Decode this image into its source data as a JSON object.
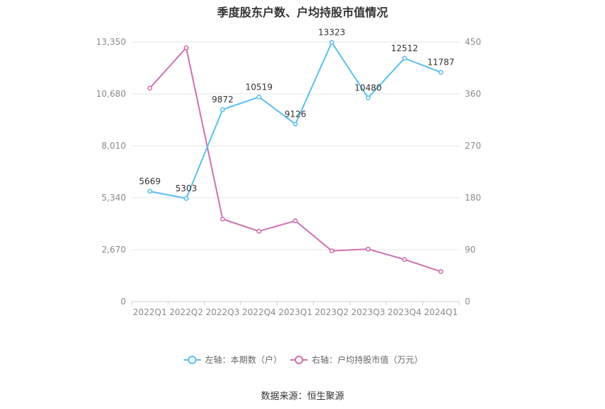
{
  "chart_data": {
    "type": "line",
    "title": "季度股东户数、户均持股市值情况",
    "source": "数据来源：恒生聚源",
    "categories": [
      "2022Q1",
      "2022Q2",
      "2022Q3",
      "2022Q4",
      "2023Q1",
      "2023Q2",
      "2023Q3",
      "2023Q4",
      "2024Q1"
    ],
    "left_axis": {
      "ticks": [
        "0",
        "2,670",
        "5,340",
        "8,010",
        "10,680",
        "13,350"
      ],
      "ylim": [
        0,
        13350
      ]
    },
    "right_axis": {
      "ticks": [
        "0",
        "90",
        "180",
        "270",
        "360",
        "450"
      ],
      "ylim": [
        0,
        450
      ]
    },
    "series": [
      {
        "name": "左轴：本期数（户）",
        "axis": "left",
        "color": "#5bc0f0",
        "values": [
          5669,
          5303,
          9872,
          10519,
          9126,
          13323,
          10480,
          12512,
          11787
        ],
        "labels": [
          "5669",
          "5303",
          "9872",
          "10519",
          "9126",
          "13323",
          "10480",
          "12512",
          "11787"
        ]
      },
      {
        "name": "右轴：户均持股市值（万元）",
        "axis": "right",
        "color": "#d070b0",
        "values": [
          370,
          440,
          143,
          122,
          140,
          88,
          91,
          73,
          52
        ]
      }
    ],
    "legend_position": "bottom",
    "grid": true
  }
}
